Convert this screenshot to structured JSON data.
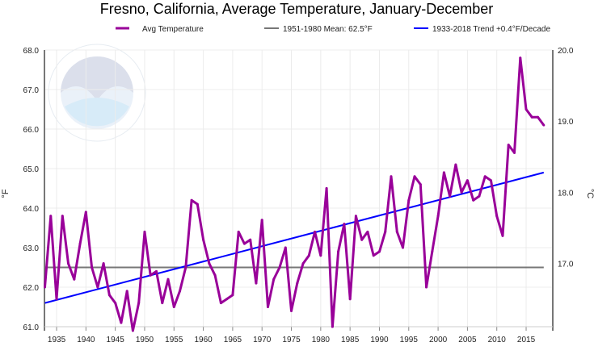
{
  "chart_data": {
    "type": "line",
    "title": "Fresno, California, Average Temperature, January-December",
    "ylabel": "°F",
    "ylabel_right": "°C",
    "xlim": [
      1933,
      2018
    ],
    "ylim": [
      61.0,
      68.0
    ],
    "yticks": [
      "61.0",
      "62.0",
      "63.0",
      "64.0",
      "65.0",
      "66.0",
      "67.0",
      "68.0"
    ],
    "yticks_right": [
      {
        "label": "17.0",
        "value_c": 17.0
      },
      {
        "label": "18.0",
        "value_c": 18.0
      },
      {
        "label": "19.0",
        "value_c": 19.0
      },
      {
        "label": "20.0",
        "value_c": 20.0
      }
    ],
    "xticks": [
      "1935",
      "1940",
      "1945",
      "1950",
      "1955",
      "1960",
      "1965",
      "1970",
      "1975",
      "1980",
      "1985",
      "1990",
      "1995",
      "2000",
      "2005",
      "2010",
      "2015"
    ],
    "grid": true,
    "legend_position": "top",
    "x": [
      1933,
      1934,
      1935,
      1936,
      1937,
      1938,
      1939,
      1940,
      1941,
      1942,
      1943,
      1944,
      1945,
      1946,
      1947,
      1948,
      1949,
      1950,
      1951,
      1952,
      1953,
      1954,
      1955,
      1956,
      1957,
      1958,
      1959,
      1960,
      1961,
      1962,
      1963,
      1964,
      1965,
      1966,
      1967,
      1968,
      1969,
      1970,
      1971,
      1972,
      1973,
      1974,
      1975,
      1976,
      1977,
      1978,
      1979,
      1980,
      1981,
      1982,
      1983,
      1984,
      1985,
      1986,
      1987,
      1988,
      1989,
      1990,
      1991,
      1992,
      1993,
      1994,
      1995,
      1996,
      1997,
      1998,
      1999,
      2000,
      2001,
      2002,
      2003,
      2004,
      2005,
      2006,
      2007,
      2008,
      2009,
      2010,
      2011,
      2012,
      2013,
      2014,
      2015,
      2016,
      2017,
      2018
    ],
    "series": [
      {
        "name": "Avg Temperature",
        "color": "#990099",
        "values": [
          62.0,
          63.8,
          61.7,
          63.8,
          62.6,
          62.2,
          63.1,
          63.9,
          62.5,
          62.0,
          62.6,
          61.8,
          61.6,
          61.1,
          61.9,
          60.9,
          61.6,
          63.4,
          62.3,
          62.4,
          61.6,
          62.2,
          61.5,
          61.9,
          62.5,
          64.2,
          64.1,
          63.2,
          62.6,
          62.3,
          61.6,
          61.7,
          61.8,
          63.4,
          63.1,
          63.2,
          62.1,
          63.7,
          61.5,
          62.2,
          62.5,
          63.0,
          61.4,
          62.1,
          62.6,
          62.8,
          63.4,
          62.8,
          64.5,
          61.0,
          62.9,
          63.6,
          61.7,
          63.8,
          63.2,
          63.4,
          62.8,
          62.9,
          63.4,
          64.8,
          63.4,
          63.0,
          64.2,
          64.8,
          64.6,
          62.0,
          62.9,
          63.8,
          64.9,
          64.3,
          65.1,
          64.4,
          64.7,
          64.2,
          64.3,
          64.8,
          64.7,
          63.8,
          63.3,
          65.6,
          65.4,
          67.8,
          66.5,
          66.3,
          66.3,
          66.1
        ]
      },
      {
        "name": "1951-1980 Mean: 62.5°F",
        "color": "#777777",
        "type": "constant",
        "value": 62.5
      },
      {
        "name": "1933-2018 Trend +0.4°F/Decade",
        "color": "#0000ff",
        "type": "trend",
        "start": [
          1933,
          61.6
        ],
        "end": [
          2018,
          64.9
        ]
      }
    ]
  }
}
